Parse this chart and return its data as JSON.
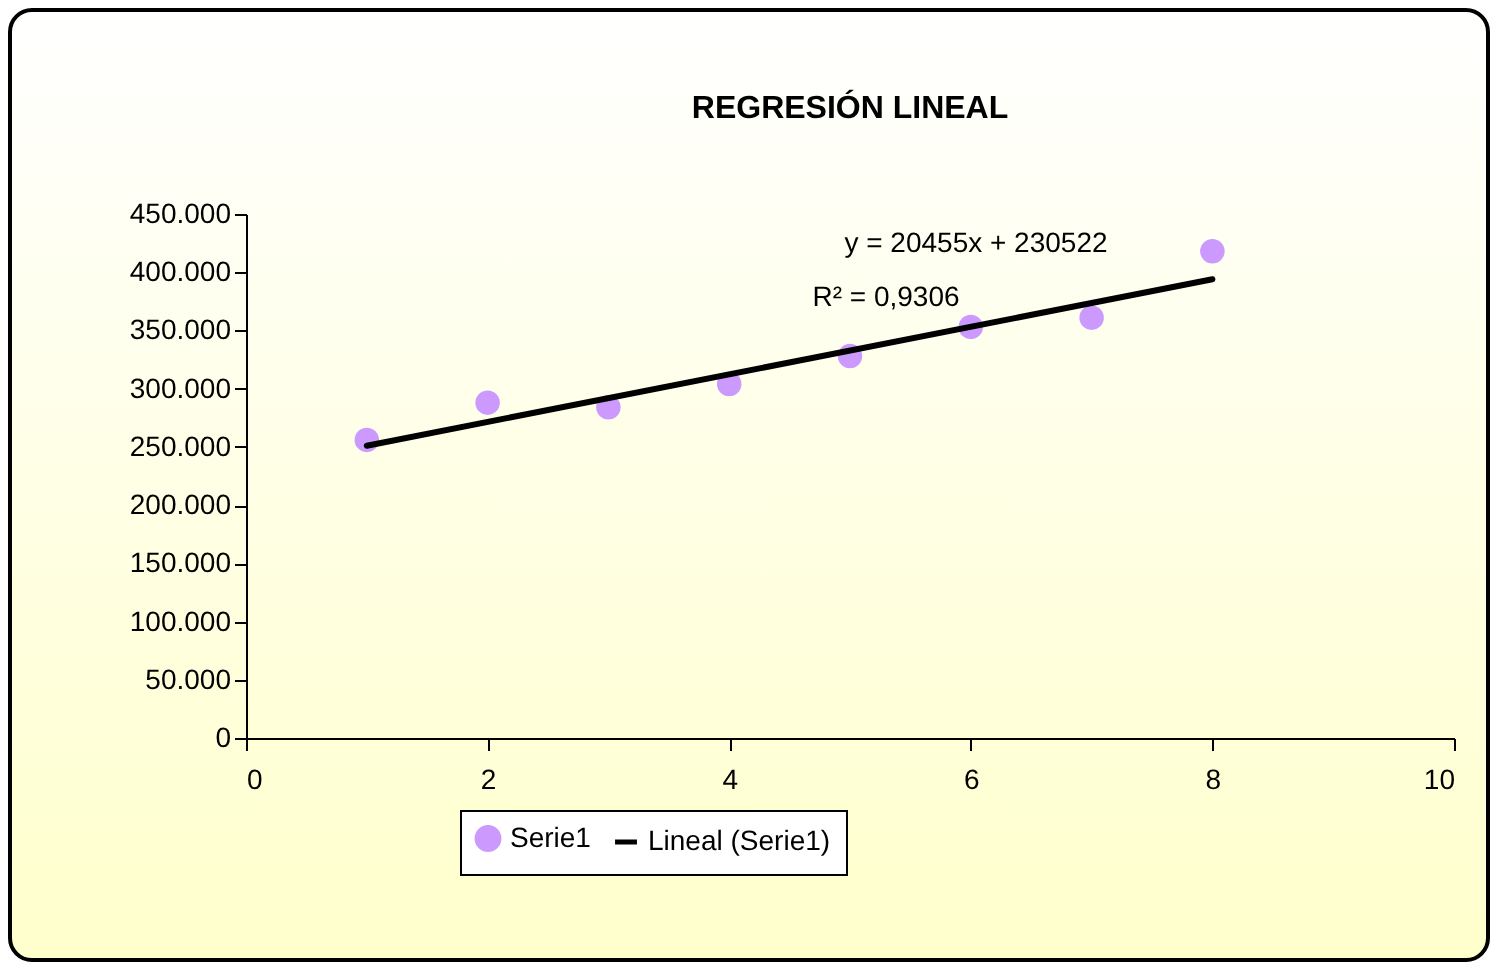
{
  "chart_data": {
    "type": "scatter",
    "title": "REGRESIÓN LINEAL",
    "series": [
      {
        "name": "Serie1",
        "color": "#cc99ff",
        "marker": "circle",
        "x": [
          1,
          2,
          3,
          4,
          5,
          6,
          7,
          8
        ],
        "values": [
          256000,
          288000,
          284000,
          304000,
          328000,
          353000,
          361000,
          418000
        ]
      },
      {
        "name": "Lineal (Serie1)",
        "type": "line",
        "color": "#000000",
        "x": [
          1,
          8
        ],
        "values": [
          251000,
          394000
        ]
      }
    ],
    "xlim": [
      0,
      10
    ],
    "xticks": [
      0,
      2,
      4,
      6,
      8,
      10
    ],
    "ylim": [
      0,
      450000
    ],
    "yticks": [
      0,
      {
        "value": 50000,
        "label": "50.000"
      },
      {
        "value": 100000,
        "label": "100.000"
      },
      {
        "value": 150000,
        "label": "150.000"
      },
      {
        "value": 200000,
        "label": "200.000"
      },
      {
        "value": 250000,
        "label": "250.000"
      },
      {
        "value": 300000,
        "label": "300.000"
      },
      {
        "value": 350000,
        "label": "350.000"
      },
      {
        "value": 400000,
        "label": "400.000"
      },
      {
        "value": 450000,
        "label": "450.000"
      }
    ],
    "legend": "bottom",
    "annotations": [
      "y = 20455x + 230522",
      "R² = 0,9306"
    ]
  }
}
